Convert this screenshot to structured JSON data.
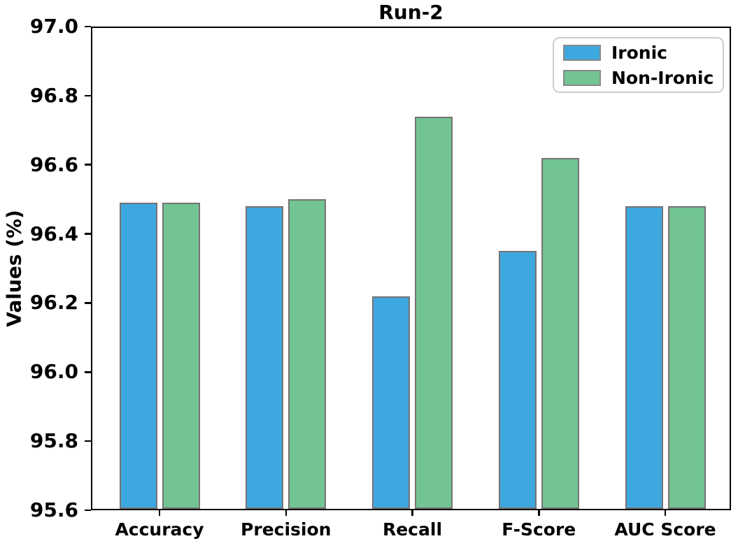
{
  "chart_data": {
    "type": "bar",
    "title": "Run-2",
    "xlabel": "",
    "ylabel": "Values (%)",
    "categories": [
      "Accuracy",
      "Precision",
      "Recall",
      "F-Score",
      "AUC Score"
    ],
    "series": [
      {
        "name": "Ironic",
        "color": "#3da8e0",
        "values": [
          96.49,
          96.48,
          96.22,
          96.35,
          96.48
        ]
      },
      {
        "name": "Non-Ironic",
        "color": "#72c493",
        "values": [
          96.49,
          96.5,
          96.74,
          96.62,
          96.48
        ]
      }
    ],
    "ylim": [
      95.6,
      97.0
    ],
    "yticks": [
      95.6,
      95.8,
      96.0,
      96.2,
      96.4,
      96.6,
      96.8,
      97.0
    ],
    "ytick_decimals": 1,
    "grid": false,
    "legend_position": "upper right",
    "bar_edge_color": "#777272",
    "axis_color": "#000000",
    "background_color": "#ffffff"
  }
}
